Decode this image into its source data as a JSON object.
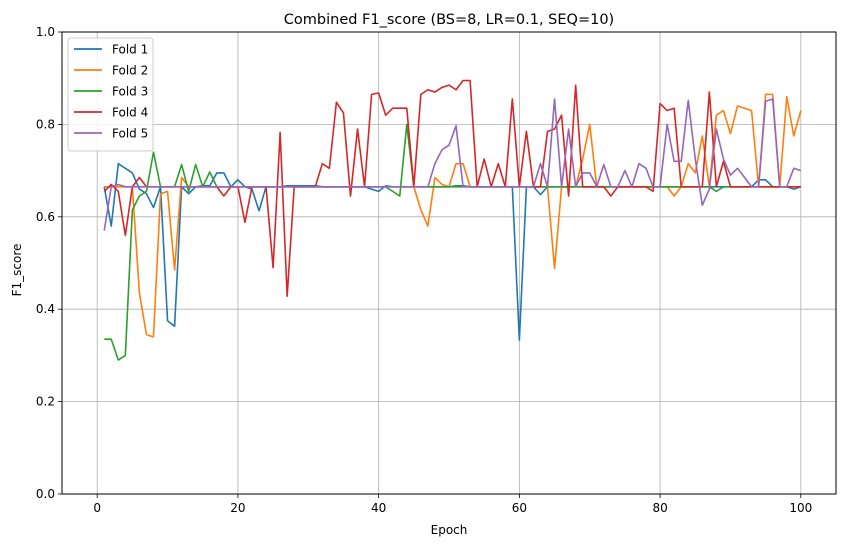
{
  "chart_data": {
    "type": "line",
    "title": "Combined F1_score (BS=8, LR=0.1, SEQ=10)",
    "xlabel": "Epoch",
    "ylabel": "F1_score",
    "xlim": [
      -5,
      105
    ],
    "ylim": [
      0,
      1
    ],
    "xticks": [
      0,
      20,
      40,
      60,
      80,
      100
    ],
    "yticks": [
      0.0,
      0.2,
      0.4,
      0.6,
      0.8,
      1.0
    ],
    "xtick_labels": [
      "0",
      "20",
      "40",
      "60",
      "80",
      "100"
    ],
    "ytick_labels": [
      "0.0",
      "0.2",
      "0.4",
      "0.6",
      "0.8",
      "1.0"
    ],
    "grid": true,
    "legend_position": "top-left",
    "x": [
      1,
      2,
      3,
      4,
      5,
      6,
      7,
      8,
      9,
      10,
      11,
      12,
      13,
      14,
      15,
      16,
      17,
      18,
      19,
      20,
      21,
      22,
      23,
      24,
      25,
      26,
      27,
      28,
      29,
      30,
      31,
      32,
      33,
      34,
      35,
      36,
      37,
      38,
      39,
      40,
      41,
      42,
      43,
      44,
      45,
      46,
      47,
      48,
      49,
      50,
      51,
      52,
      53,
      54,
      55,
      56,
      57,
      58,
      59,
      60,
      61,
      62,
      63,
      64,
      65,
      66,
      67,
      68,
      69,
      70,
      71,
      72,
      73,
      74,
      75,
      76,
      77,
      78,
      79,
      80,
      81,
      82,
      83,
      84,
      85,
      86,
      87,
      88,
      89,
      90,
      91,
      92,
      93,
      94,
      95,
      96,
      97,
      98,
      99,
      100
    ],
    "series": [
      {
        "name": "Fold 1",
        "color": "#1f77b4",
        "values": [
          0.665,
          0.58,
          0.715,
          0.705,
          0.695,
          0.66,
          0.65,
          0.62,
          0.665,
          0.375,
          0.363,
          0.665,
          0.65,
          0.665,
          0.667,
          0.667,
          0.695,
          0.695,
          0.665,
          0.68,
          0.665,
          0.66,
          0.613,
          0.665,
          0.665,
          0.665,
          0.667,
          0.667,
          0.667,
          0.667,
          0.667,
          0.665,
          0.665,
          0.665,
          0.665,
          0.665,
          0.665,
          0.665,
          0.66,
          0.655,
          0.667,
          0.665,
          0.665,
          0.665,
          0.665,
          0.665,
          0.665,
          0.665,
          0.665,
          0.665,
          0.667,
          0.667,
          0.665,
          0.665,
          0.665,
          0.665,
          0.665,
          0.665,
          0.665,
          0.333,
          0.665,
          0.665,
          0.648,
          0.665,
          0.665,
          0.665,
          0.665,
          0.665,
          0.665,
          0.665,
          0.665,
          0.665,
          0.665,
          0.665,
          0.665,
          0.665,
          0.665,
          0.665,
          0.665,
          0.665,
          0.665,
          0.665,
          0.665,
          0.665,
          0.665,
          0.665,
          0.665,
          0.665,
          0.665,
          0.665,
          0.665,
          0.665,
          0.665,
          0.68,
          0.68,
          0.665,
          0.665,
          0.665,
          0.66,
          0.665
        ]
      },
      {
        "name": "Fold 2",
        "color": "#ff7f0e",
        "values": [
          0.665,
          0.665,
          0.665,
          0.665,
          0.665,
          0.435,
          0.345,
          0.34,
          0.65,
          0.655,
          0.485,
          0.685,
          0.665,
          0.665,
          0.665,
          0.665,
          0.665,
          0.665,
          0.665,
          0.665,
          0.665,
          0.665,
          0.665,
          0.665,
          0.665,
          0.665,
          0.665,
          0.665,
          0.665,
          0.665,
          0.665,
          0.665,
          0.665,
          0.665,
          0.665,
          0.665,
          0.665,
          0.665,
          0.665,
          0.665,
          0.665,
          0.665,
          0.665,
          0.665,
          0.665,
          0.615,
          0.58,
          0.685,
          0.67,
          0.665,
          0.715,
          0.715,
          0.665,
          0.665,
          0.665,
          0.665,
          0.665,
          0.665,
          0.665,
          0.665,
          0.665,
          0.665,
          0.665,
          0.665,
          0.488,
          0.665,
          0.665,
          0.665,
          0.725,
          0.8,
          0.665,
          0.665,
          0.665,
          0.665,
          0.665,
          0.665,
          0.665,
          0.665,
          0.665,
          0.665,
          0.665,
          0.645,
          0.665,
          0.715,
          0.695,
          0.775,
          0.665,
          0.82,
          0.83,
          0.78,
          0.84,
          0.835,
          0.83,
          0.665,
          0.865,
          0.865,
          0.665,
          0.86,
          0.775,
          0.83
        ]
      },
      {
        "name": "Fold 3",
        "color": "#2ca02c",
        "values": [
          0.335,
          0.335,
          0.29,
          0.3,
          0.615,
          0.645,
          0.655,
          0.74,
          0.665,
          0.665,
          0.665,
          0.713,
          0.655,
          0.713,
          0.665,
          0.697,
          0.665,
          0.665,
          0.665,
          0.665,
          0.665,
          0.665,
          0.665,
          0.665,
          0.665,
          0.665,
          0.665,
          0.665,
          0.665,
          0.665,
          0.665,
          0.665,
          0.665,
          0.665,
          0.665,
          0.665,
          0.665,
          0.665,
          0.665,
          0.665,
          0.665,
          0.655,
          0.645,
          0.8,
          0.665,
          0.665,
          0.665,
          0.665,
          0.665,
          0.665,
          0.665,
          0.665,
          0.665,
          0.665,
          0.665,
          0.665,
          0.665,
          0.665,
          0.665,
          0.665,
          0.665,
          0.665,
          0.665,
          0.665,
          0.665,
          0.665,
          0.665,
          0.665,
          0.665,
          0.665,
          0.665,
          0.665,
          0.665,
          0.665,
          0.665,
          0.665,
          0.665,
          0.665,
          0.665,
          0.665,
          0.665,
          0.665,
          0.665,
          0.665,
          0.665,
          0.665,
          0.665,
          0.655,
          0.665,
          0.665,
          0.665,
          0.665,
          0.665,
          0.665,
          0.665,
          0.665,
          0.665,
          0.665,
          0.665,
          0.665
        ]
      },
      {
        "name": "Fold 4",
        "color": "#d62728",
        "values": [
          0.655,
          0.67,
          0.655,
          0.56,
          0.665,
          0.685,
          0.665,
          0.665,
          0.665,
          0.665,
          0.665,
          0.665,
          0.665,
          0.665,
          0.665,
          0.665,
          0.665,
          0.645,
          0.665,
          0.665,
          0.588,
          0.665,
          0.665,
          0.665,
          0.49,
          0.783,
          0.428,
          0.665,
          0.665,
          0.665,
          0.665,
          0.715,
          0.705,
          0.848,
          0.825,
          0.645,
          0.79,
          0.665,
          0.865,
          0.868,
          0.82,
          0.835,
          0.835,
          0.835,
          0.665,
          0.865,
          0.875,
          0.87,
          0.88,
          0.885,
          0.875,
          0.895,
          0.895,
          0.665,
          0.725,
          0.665,
          0.715,
          0.665,
          0.855,
          0.665,
          0.785,
          0.665,
          0.665,
          0.785,
          0.79,
          0.82,
          0.645,
          0.885,
          0.665,
          0.665,
          0.665,
          0.665,
          0.645,
          0.665,
          0.665,
          0.665,
          0.665,
          0.665,
          0.655,
          0.845,
          0.83,
          0.835,
          0.665,
          0.665,
          0.665,
          0.665,
          0.87,
          0.665,
          0.72,
          0.665,
          0.665,
          0.665,
          0.665,
          0.665,
          0.665,
          0.665,
          0.665,
          0.665,
          0.665,
          0.665
        ]
      },
      {
        "name": "Fold 5",
        "color": "#9467bd",
        "values": [
          0.57,
          0.665,
          0.67,
          0.665,
          0.665,
          0.665,
          0.665,
          0.665,
          0.665,
          0.665,
          0.665,
          0.665,
          0.665,
          0.665,
          0.665,
          0.665,
          0.665,
          0.665,
          0.665,
          0.665,
          0.665,
          0.665,
          0.665,
          0.665,
          0.665,
          0.665,
          0.665,
          0.665,
          0.665,
          0.665,
          0.665,
          0.665,
          0.665,
          0.665,
          0.665,
          0.665,
          0.665,
          0.665,
          0.665,
          0.665,
          0.665,
          0.665,
          0.665,
          0.665,
          0.665,
          0.665,
          0.665,
          0.715,
          0.745,
          0.755,
          0.797,
          0.665,
          0.665,
          0.665,
          0.665,
          0.665,
          0.665,
          0.665,
          0.665,
          0.665,
          0.665,
          0.665,
          0.715,
          0.665,
          0.855,
          0.665,
          0.79,
          0.665,
          0.695,
          0.695,
          0.665,
          0.713,
          0.665,
          0.665,
          0.7,
          0.665,
          0.715,
          0.705,
          0.665,
          0.665,
          0.8,
          0.72,
          0.72,
          0.852,
          0.725,
          0.625,
          0.66,
          0.79,
          0.725,
          0.69,
          0.705,
          0.685,
          0.665,
          0.665,
          0.85,
          0.855,
          0.665,
          0.665,
          0.705,
          0.7
        ]
      }
    ]
  }
}
